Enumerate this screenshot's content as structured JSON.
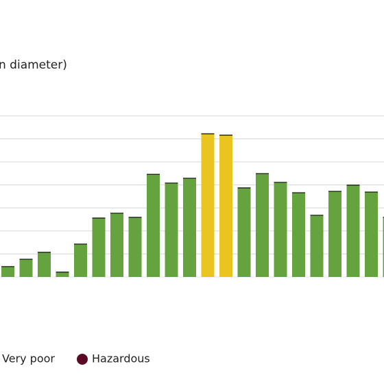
{
  "chart_data": {
    "type": "bar",
    "title": "n diameter)",
    "categories": [
      null,
      null,
      null,
      null,
      null,
      null,
      null,
      null,
      null,
      null,
      null,
      null,
      null,
      null,
      null,
      null,
      null,
      null,
      null,
      null,
      null,
      null
    ],
    "values": [
      0.45,
      0.77,
      1.07,
      0.21,
      1.43,
      2.56,
      2.77,
      2.59,
      4.46,
      4.08,
      4.29,
      6.22,
      6.16,
      3.87,
      4.49,
      4.11,
      3.66,
      2.68,
      3.72,
      3.99,
      3.69,
      2.59
    ],
    "colors": [
      "#65a33f",
      "#65a33f",
      "#65a33f",
      "#65a33f",
      "#65a33f",
      "#65a33f",
      "#65a33f",
      "#65a33f",
      "#65a33f",
      "#65a33f",
      "#65a33f",
      "#eac41f",
      "#eac41f",
      "#65a33f",
      "#65a33f",
      "#65a33f",
      "#65a33f",
      "#65a33f",
      "#65a33f",
      "#65a33f",
      "#65a33f",
      "#65a33f"
    ],
    "ylim": [
      0,
      7
    ],
    "yticks": [
      1,
      2,
      3,
      4,
      5,
      6,
      7
    ],
    "grid": true,
    "legend": [
      {
        "label": "Very poor"
      },
      {
        "label": "Hazardous",
        "color": "#5a0a24"
      }
    ]
  }
}
